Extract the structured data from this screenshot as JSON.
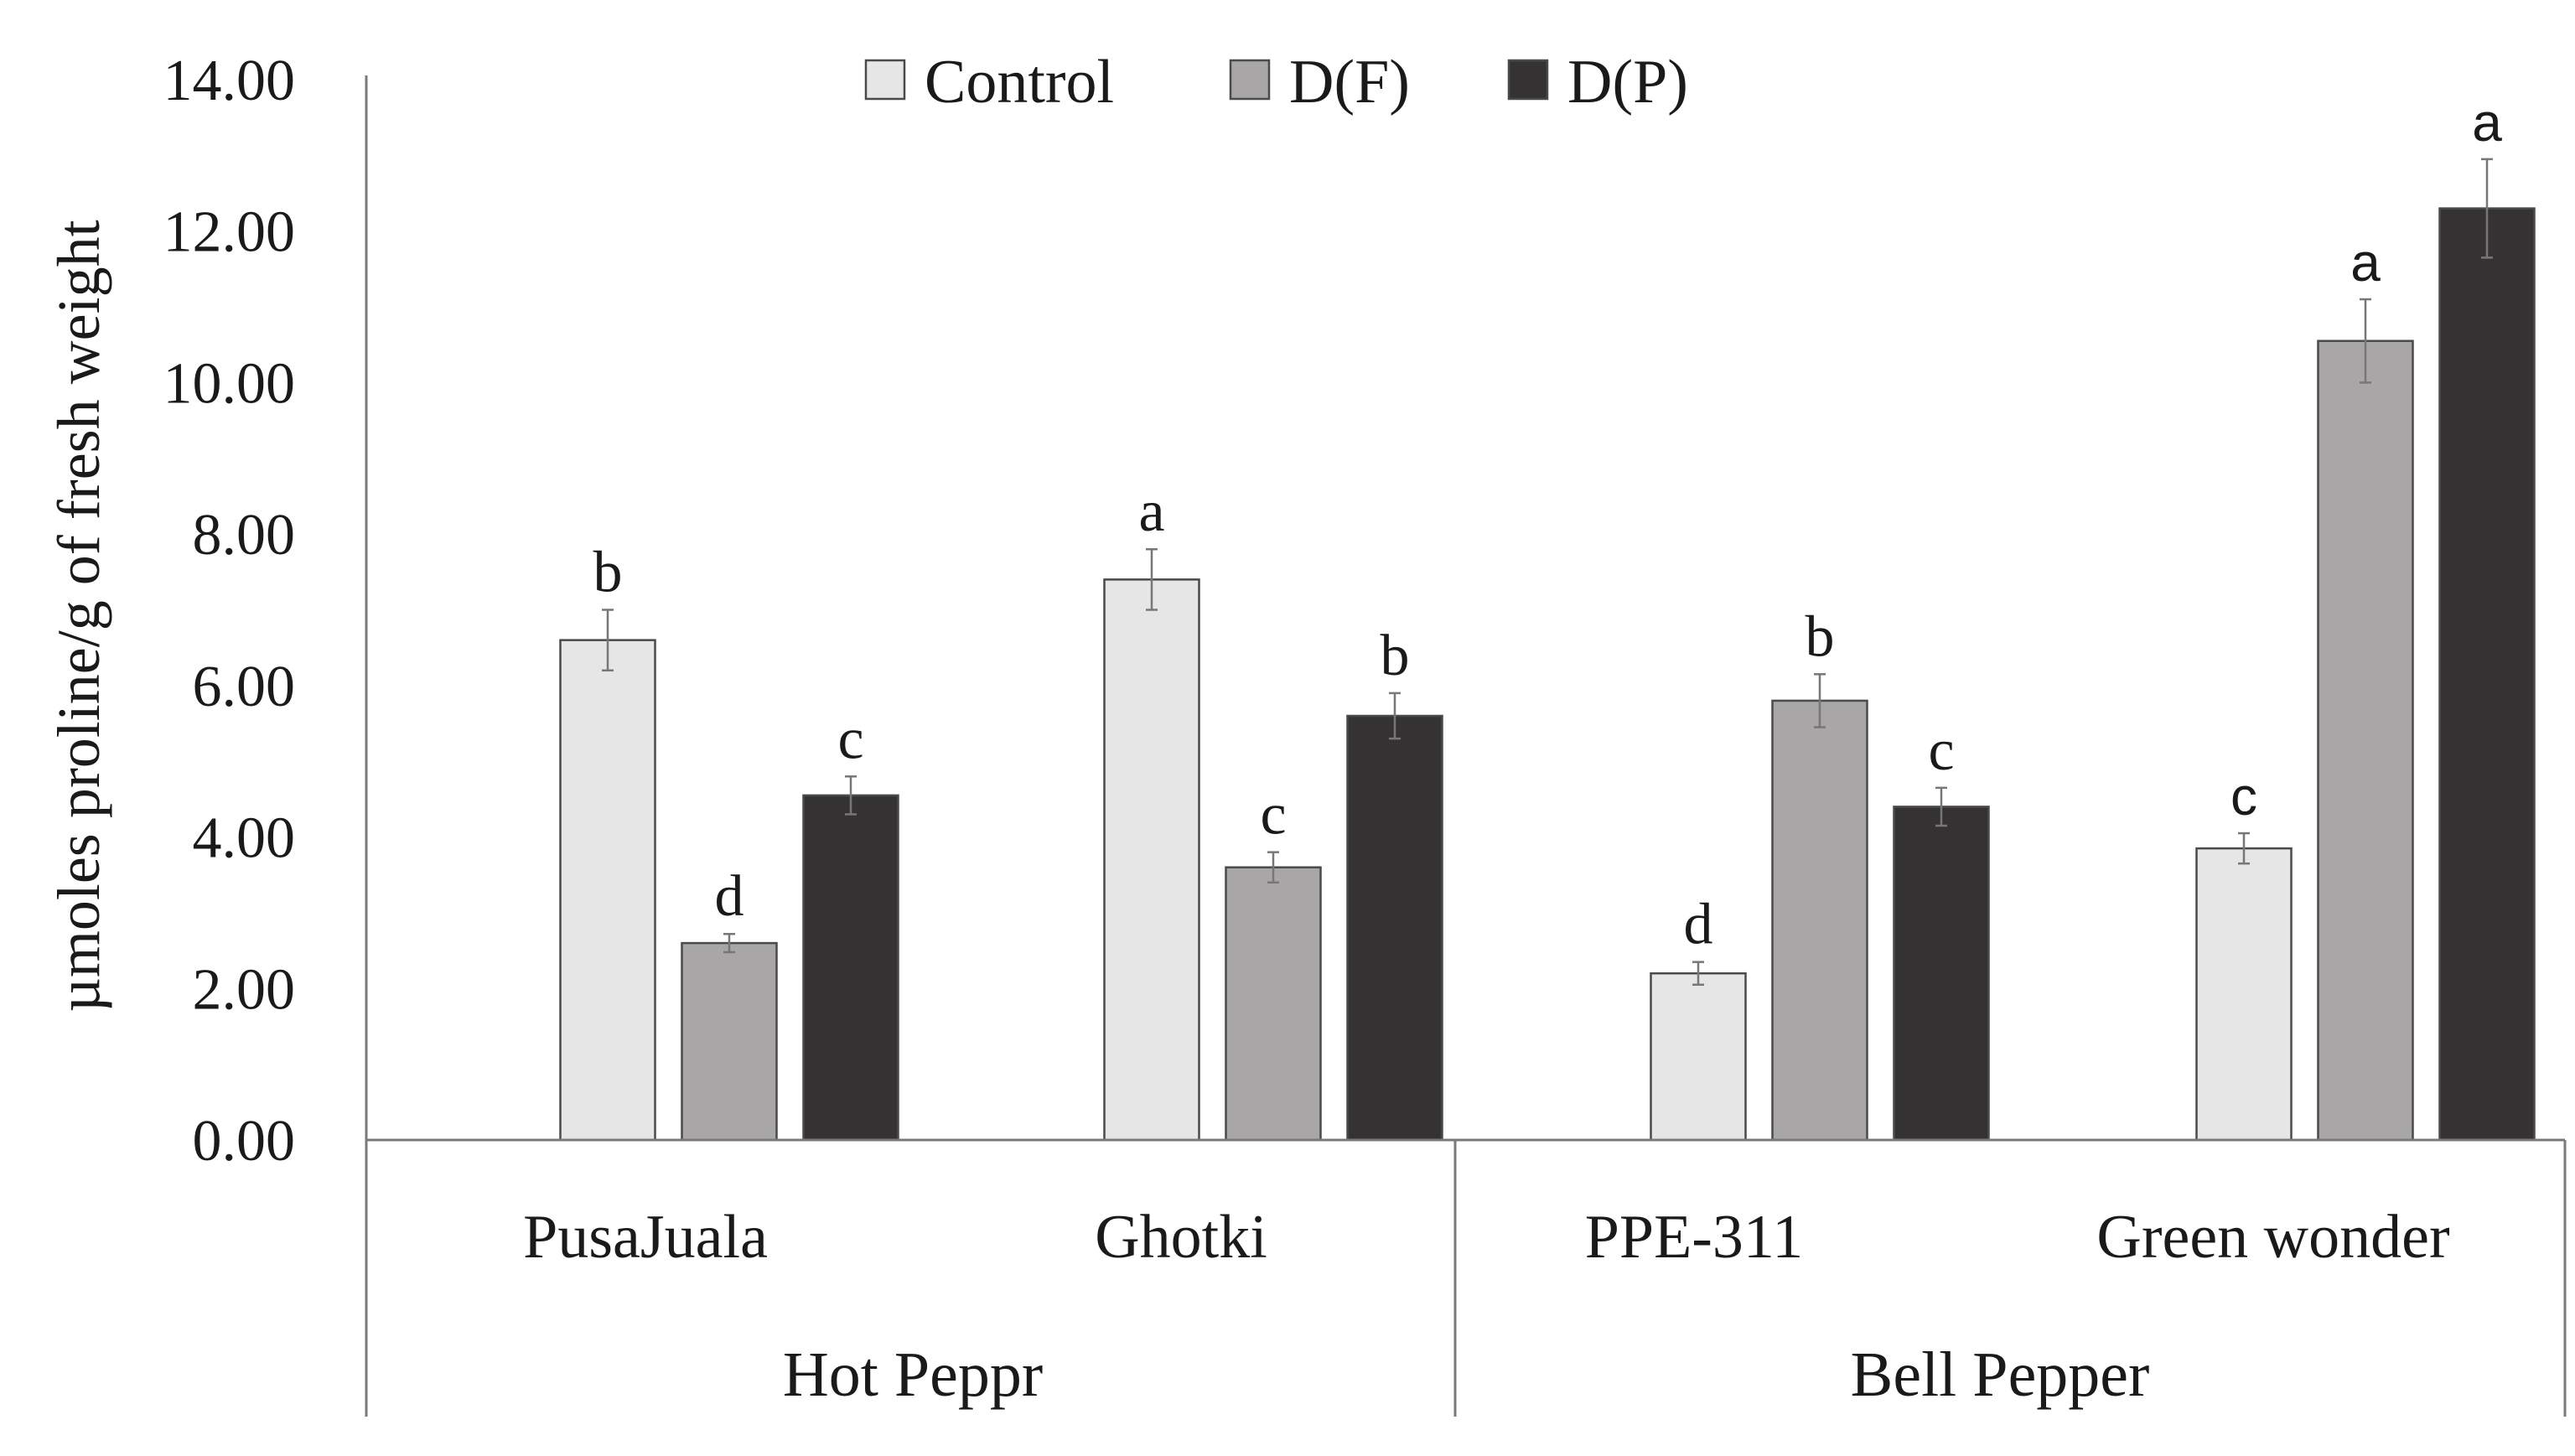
{
  "chart_data": {
    "type": "bar",
    "title": "",
    "xlabel": "",
    "ylabel": "µmoles proline/g of fresh weight",
    "ylim": [
      0,
      14
    ],
    "yticks": [
      "0.00",
      "2.00",
      "4.00",
      "6.00",
      "8.00",
      "10.00",
      "12.00",
      "14.00"
    ],
    "grid": false,
    "legend_position": "top",
    "categories": [
      "PusaJuala",
      "Ghotki",
      "PPE-311",
      "Green wonder"
    ],
    "groups": [
      {
        "label": "Hot Peppr",
        "categories": [
          "PusaJuala",
          "Ghotki"
        ]
      },
      {
        "label": "Bell Pepper",
        "categories": [
          "PPE-311",
          "Green wonder"
        ]
      }
    ],
    "series": [
      {
        "name": "Control",
        "color": "#e6e6e6",
        "values": [
          6.6,
          7.4,
          2.2,
          3.85
        ],
        "errors": [
          0.4,
          0.4,
          0.15,
          0.2
        ],
        "letters": [
          "b",
          "a",
          "d",
          "c"
        ]
      },
      {
        "name": "D(F)",
        "color": "#a8a6a6",
        "values": [
          2.6,
          3.6,
          5.8,
          10.55
        ],
        "errors": [
          0.12,
          0.2,
          0.35,
          0.55
        ],
        "letters": [
          "d",
          "c",
          "b",
          "a"
        ]
      },
      {
        "name": "D(P)",
        "color": "#353234",
        "values": [
          4.55,
          5.6,
          4.4,
          12.3
        ],
        "errors": [
          0.25,
          0.3,
          0.25,
          0.65
        ],
        "letters": [
          "c",
          "b",
          "c",
          "a"
        ]
      }
    ]
  }
}
